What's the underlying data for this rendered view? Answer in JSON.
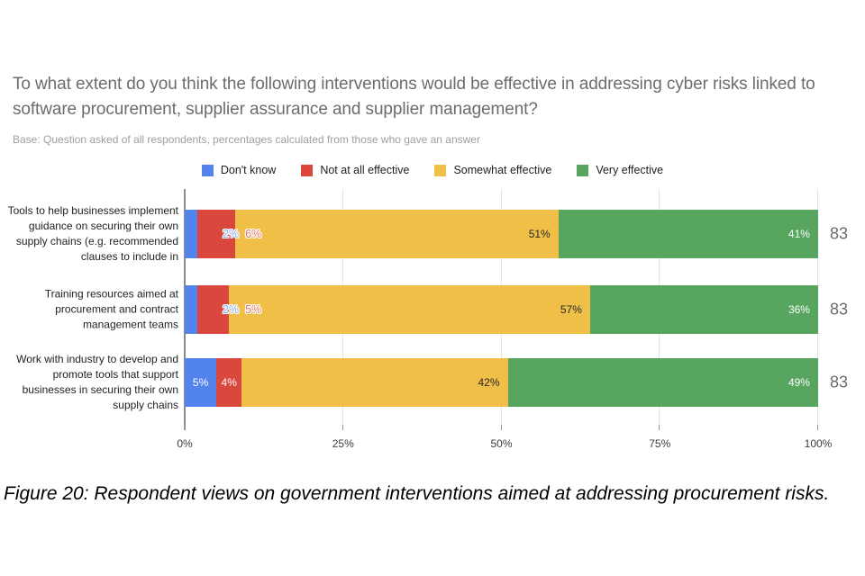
{
  "page": {
    "title": "To what extent do you think the following interventions would be effective in addressing cyber risks linked to software procurement, supplier assurance and supplier management?",
    "subtitle": "Base: Question asked of all respondents, percentages calculated from those who gave an answer",
    "caption": "Figure 20: Respondent views on government interventions aimed at addressing procurement risks."
  },
  "chart_data": {
    "type": "bar",
    "stacked": true,
    "orientation": "horizontal",
    "grid": true,
    "legend_position": "top",
    "xlim": [
      0,
      100
    ],
    "x_ticks": [
      "0%",
      "25%",
      "50%",
      "75%",
      "100%"
    ],
    "categories": [
      "Tools to help businesses implement guidance on securing their own supply chains (e.g. recommended clauses to include in",
      "Training resources aimed at procurement and contract management teams",
      "Work with industry to develop and promote tools that support businesses in securing their own supply chains"
    ],
    "series": [
      {
        "name": "Don't know",
        "color": "#5383ec",
        "values": [
          2,
          2,
          5
        ],
        "label_color": "#ffffff",
        "small_label_color": "#86aaf2"
      },
      {
        "name": "Not at all effective",
        "color": "#d9473d",
        "values": [
          6,
          5,
          4
        ],
        "label_color": "#ffffff",
        "small_label_color": "#e4766b"
      },
      {
        "name": "Somewhat effective",
        "color": "#f0bf48",
        "values": [
          51,
          57,
          42
        ],
        "label_color": "#272727"
      },
      {
        "name": "Very effective",
        "color": "#57a55f",
        "values": [
          41,
          36,
          49
        ],
        "label_color": "#ffffff"
      }
    ],
    "totals": [
      83,
      83,
      83
    ],
    "unit": "%"
  }
}
